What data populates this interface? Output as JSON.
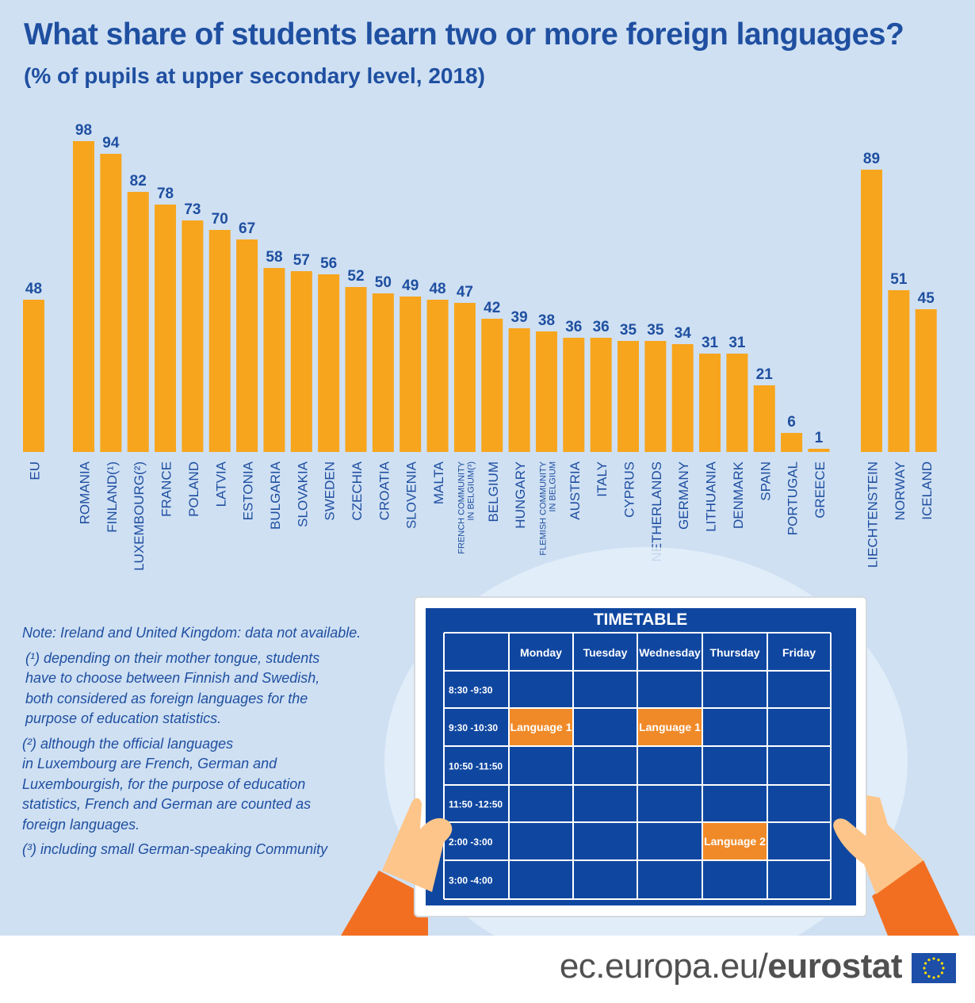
{
  "title": "What share of students learn two or more foreign languages?",
  "subtitle": "(% of pupils at upper secondary level, 2018)",
  "colors": {
    "bar": "#f7a51d",
    "label": "#1f4fa0",
    "timetable_bg": "#0f47a0",
    "highlight": "#f08a28"
  },
  "chart_data": {
    "type": "bar",
    "title": "What share of students learn two or more foreign languages?",
    "subtitle": "(% of pupils at upper secondary level, 2018)",
    "xlabel": "",
    "ylabel": "",
    "ylim": [
      0,
      100
    ],
    "grid": false,
    "groups": [
      {
        "categories": [
          [
            "EU"
          ]
        ],
        "values": [
          48
        ]
      },
      {
        "categories": [
          [
            "ROMANIA"
          ],
          [
            "FINLAND(¹)"
          ],
          [
            "LUXEMBOURG(²)"
          ],
          [
            "FRANCE"
          ],
          [
            "POLAND"
          ],
          [
            "LATVIA"
          ],
          [
            "ESTONIA"
          ],
          [
            "BULGARIA"
          ],
          [
            "SLOVAKIA"
          ],
          [
            "SWEDEN"
          ],
          [
            "CZECHIA"
          ],
          [
            "CROATIA"
          ],
          [
            "SLOVENIA"
          ],
          [
            "MALTA"
          ],
          [
            "FRENCH COMMUNITY",
            "IN BELGIUM(³)"
          ],
          [
            "BELGIUM"
          ],
          [
            "HUNGARY"
          ],
          [
            "FLEMISH COMMUNITY",
            "IN BELGIUM"
          ],
          [
            "AUSTRIA"
          ],
          [
            "ITALY"
          ],
          [
            "CYPRUS"
          ],
          [
            "NETHERLANDS"
          ],
          [
            "GERMANY"
          ],
          [
            "LITHUANIA"
          ],
          [
            "DENMARK"
          ],
          [
            "SPAIN"
          ],
          [
            "PORTUGAL"
          ],
          [
            "GREECE"
          ]
        ],
        "values": [
          98,
          94,
          82,
          78,
          73,
          70,
          67,
          58,
          57,
          56,
          52,
          50,
          49,
          48,
          47,
          42,
          39,
          38,
          36,
          36,
          35,
          35,
          34,
          31,
          31,
          21,
          6,
          1
        ]
      },
      {
        "categories": [
          [
            "LIECHTENSTEIN"
          ],
          [
            "NORWAY"
          ],
          [
            "ICELAND"
          ]
        ],
        "values": [
          89,
          51,
          45
        ]
      }
    ]
  },
  "notes": {
    "intro": "Note: Ireland and United Kingdom: data not available.",
    "n1": [
      "(¹) depending on their mother tongue, students",
      "have to choose between Finnish and Swedish,",
      "both considered as foreign languages for the",
      "purpose of education statistics."
    ],
    "n2": [
      "(²) although the official languages",
      "in Luxembourg are French, German and",
      "Luxembourgish, for the purpose of education",
      "statistics, French and German are counted as",
      "foreign languages."
    ],
    "n3": "(³) including small German-speaking Community"
  },
  "timetable": {
    "title": "TIMETABLE",
    "days": [
      "Monday",
      "Tuesday",
      "Wednesday",
      "Thursday",
      "Friday"
    ],
    "times": [
      "8:30 -9:30",
      "9:30 -10:30",
      "10:50 -11:50",
      "11:50 -12:50",
      "2:00 -3:00",
      "3:00 -4:00"
    ],
    "lessons": [
      {
        "row": 1,
        "col": 0,
        "label": "Language 1"
      },
      {
        "row": 1,
        "col": 2,
        "label": "Language 1"
      },
      {
        "row": 4,
        "col": 3,
        "label": "Language 2"
      }
    ]
  },
  "footer": {
    "domain": "ec.europa.eu/",
    "brand": "eurostat"
  }
}
